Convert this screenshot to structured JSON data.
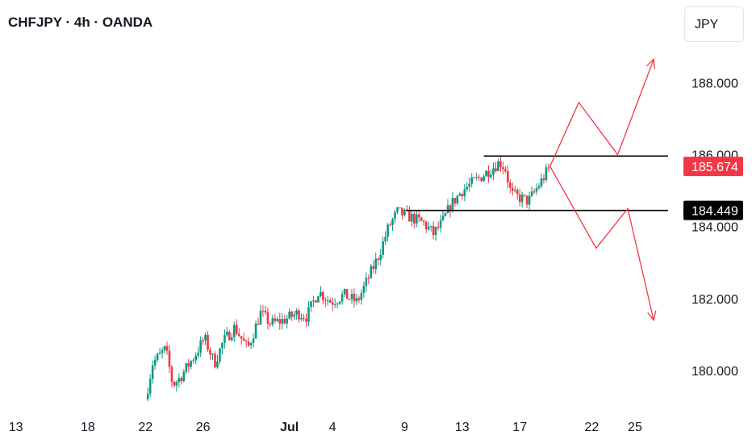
{
  "header": {
    "title": "CHFJPY · 4h · OANDA",
    "currency": "JPY"
  },
  "chart_data": {
    "type": "candlestick",
    "x_ticks": [
      {
        "label": "13",
        "day": -18,
        "bold": false
      },
      {
        "label": "18",
        "day": -13,
        "bold": false
      },
      {
        "label": "22",
        "day": -9,
        "bold": false
      },
      {
        "label": "26",
        "day": -5,
        "bold": false
      },
      {
        "label": "Jul",
        "day": 1,
        "bold": true
      },
      {
        "label": "4",
        "day": 4,
        "bold": false
      },
      {
        "label": "9",
        "day": 9,
        "bold": false
      },
      {
        "label": "13",
        "day": 13,
        "bold": false
      },
      {
        "label": "17",
        "day": 17,
        "bold": false
      },
      {
        "label": "22",
        "day": 22,
        "bold": false
      },
      {
        "label": "25",
        "day": 25,
        "bold": false
      }
    ],
    "y_ticks": [
      "188.000",
      "186.000",
      "184.000",
      "182.000",
      "180.000"
    ],
    "ylim": [
      178.9,
      189.4
    ],
    "xlim_days": [
      -19.1,
      27.3
    ],
    "levels": [
      {
        "price": 185.96,
        "from_day": 14.5,
        "label": "",
        "label_color": ""
      },
      {
        "price": 184.449,
        "from_day": 9.1,
        "label": "184.449",
        "label_color": "#000000"
      }
    ],
    "last_price": {
      "value": 185.674,
      "label": "185.674",
      "color": "#f23645"
    },
    "colors": {
      "up": "#089981",
      "down": "#f23645",
      "arrow": "#f23645",
      "line": "#000000"
    },
    "candles_waypoints": [
      [
        -9.0,
        179.2
      ],
      [
        -8.5,
        180.2
      ],
      [
        -7.6,
        180.6
      ],
      [
        -7.1,
        179.6
      ],
      [
        -6.6,
        179.8
      ],
      [
        -5.6,
        180.4
      ],
      [
        -4.9,
        180.9
      ],
      [
        -4.2,
        180.2
      ],
      [
        -3.6,
        180.8
      ],
      [
        -2.8,
        181.2
      ],
      [
        -1.9,
        180.6
      ],
      [
        -1.0,
        181.6
      ],
      [
        -0.3,
        181.3
      ],
      [
        0.6,
        181.4
      ],
      [
        1.6,
        181.6
      ],
      [
        2.2,
        181.5
      ],
      [
        3.0,
        182.2
      ],
      [
        3.9,
        181.9
      ],
      [
        4.8,
        182.1
      ],
      [
        5.7,
        181.9
      ],
      [
        6.4,
        182.5
      ],
      [
        7.2,
        183.2
      ],
      [
        7.9,
        184.0
      ],
      [
        8.5,
        184.4
      ],
      [
        9.2,
        184.3
      ],
      [
        10.3,
        184.1
      ],
      [
        11.0,
        183.8
      ],
      [
        11.6,
        184.1
      ],
      [
        12.2,
        184.6
      ],
      [
        13.0,
        185.0
      ],
      [
        14.0,
        185.3
      ],
      [
        15.0,
        185.6
      ],
      [
        15.6,
        185.8
      ],
      [
        16.0,
        185.6
      ],
      [
        16.4,
        184.9
      ],
      [
        17.0,
        184.8
      ],
      [
        17.6,
        184.7
      ],
      [
        18.4,
        185.2
      ],
      [
        19.1,
        185.67
      ]
    ],
    "projection_arrows": [
      [
        [
          19.1,
          185.674
        ],
        [
          21.1,
          187.45
        ],
        [
          23.8,
          186.0
        ],
        [
          26.3,
          188.65
        ]
      ],
      [
        [
          19.1,
          185.674
        ],
        [
          22.3,
          183.4
        ],
        [
          24.5,
          184.5
        ],
        [
          26.3,
          181.4
        ]
      ]
    ]
  }
}
